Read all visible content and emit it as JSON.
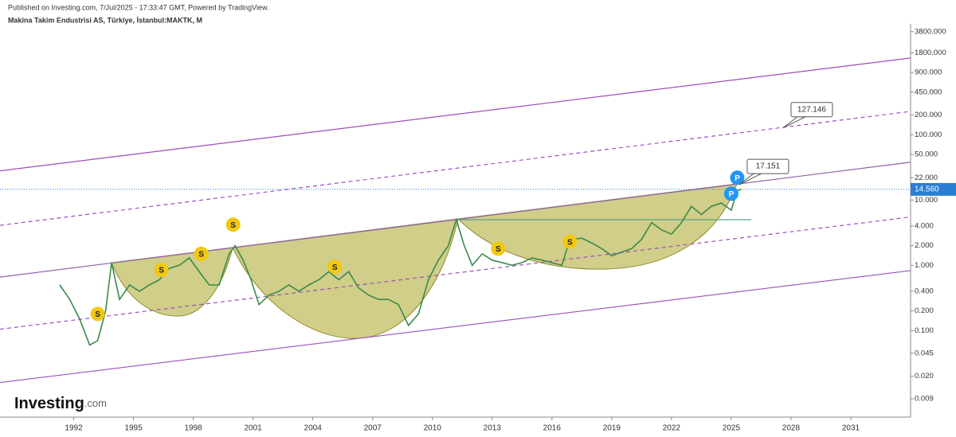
{
  "chart_data": {
    "type": "line",
    "header": "Published on Investing.com, 7/Jul/2025 - 17:33:47 GMT, Powered by TradingView.",
    "title": "Makina Takim Endustrisi AS, Türkiye, İstanbul:MAKTK, M",
    "brand": "Investing",
    "brand_suffix": ".com",
    "log_scale": true,
    "xlim": [
      1988.3,
      2034.0
    ],
    "xticks": [
      1992,
      1995,
      1998,
      2001,
      2004,
      2007,
      2010,
      2013,
      2016,
      2019,
      2022,
      2025,
      2028,
      2031
    ],
    "ylim": [
      0.005,
      5000
    ],
    "yticks": [
      {
        "value": 3800,
        "label": "3800.000"
      },
      {
        "value": 1800,
        "label": "1800.000"
      },
      {
        "value": 900,
        "label": "900.000"
      },
      {
        "value": 450,
        "label": "450.000"
      },
      {
        "value": 200,
        "label": "200.000"
      },
      {
        "value": 100,
        "label": "100.000"
      },
      {
        "value": 50,
        "label": "50.000"
      },
      {
        "value": 22,
        "label": "22.000"
      },
      {
        "value": 10,
        "label": "10.000"
      },
      {
        "value": 4,
        "label": "4.000"
      },
      {
        "value": 2,
        "label": "2.000"
      },
      {
        "value": 1,
        "label": "1.000"
      },
      {
        "value": 0.4,
        "label": "0.400"
      },
      {
        "value": 0.2,
        "label": "0.200"
      },
      {
        "value": 0.1,
        "label": "0.100"
      },
      {
        "value": 0.045,
        "label": "0.045"
      },
      {
        "value": 0.02,
        "label": "0.020"
      },
      {
        "value": 0.009,
        "label": "0.009"
      }
    ],
    "series": [
      {
        "color": "#3a8a4a",
        "x": [
          1991.3,
          1991.8,
          1992.3,
          1992.8,
          1993.2,
          1993.6,
          1993.9,
          1994.3,
          1994.8,
          1995.3,
          1995.8,
          1996.3,
          1996.8,
          1997.3,
          1997.8,
          1998.3,
          1998.8,
          1999.3,
          1999.8,
          2000.1,
          2000.5,
          2000.9,
          2001.3,
          2001.8,
          2002.3,
          2002.8,
          2003.3,
          2003.8,
          2004.3,
          2004.8,
          2005.3,
          2005.8,
          2006.3,
          2006.8,
          2007.3,
          2007.8,
          2008.3,
          2008.8,
          2009.3,
          2009.8,
          2010.3,
          2010.8,
          2011.2,
          2011.6,
          2012.0,
          2012.5,
          2013.0,
          2013.5,
          2014.0,
          2014.5,
          2015.0,
          2015.5,
          2016.0,
          2016.5,
          2016.9,
          2017.5,
          2018.0,
          2018.5,
          2019.0,
          2019.5,
          2020.0,
          2020.5,
          2021.0,
          2021.5,
          2022.0,
          2022.5,
          2023.0,
          2023.5,
          2024.0,
          2024.5,
          2025.0,
          2025.3,
          2025.5
        ],
        "values": [
          0.5,
          0.3,
          0.15,
          0.06,
          0.07,
          0.2,
          1.1,
          0.3,
          0.5,
          0.4,
          0.5,
          0.6,
          0.9,
          1.0,
          1.3,
          0.8,
          0.5,
          0.5,
          1.5,
          2.0,
          1.2,
          0.6,
          0.25,
          0.35,
          0.4,
          0.5,
          0.4,
          0.5,
          0.6,
          0.8,
          0.6,
          0.8,
          0.45,
          0.35,
          0.3,
          0.3,
          0.25,
          0.12,
          0.18,
          0.6,
          1.2,
          2.0,
          5.0,
          2.0,
          1.0,
          1.5,
          1.2,
          1.1,
          1.0,
          1.1,
          1.3,
          1.2,
          1.1,
          1.0,
          2.5,
          2.6,
          2.2,
          1.8,
          1.4,
          1.6,
          1.8,
          2.5,
          4.5,
          3.5,
          3.0,
          4.5,
          8.0,
          6.0,
          8.0,
          9.0,
          7.0,
          14.0,
          14.56
        ]
      }
    ],
    "trendlines": [
      {
        "color": "#9c4fbf",
        "dash": false,
        "x": [
          1988.3,
          2034.0
        ],
        "values": [
          28,
          1500
        ]
      },
      {
        "color": "#9c4fbf",
        "dash": false,
        "x": [
          1988.3,
          2034.0
        ],
        "values": [
          0.016,
          0.83
        ]
      },
      {
        "color": "#8f5fa8",
        "dash": false,
        "x": [
          1988.3,
          2034.0
        ],
        "values": [
          0.66,
          38
        ]
      },
      {
        "color": "#9c4fbf",
        "dash": true,
        "x": [
          1988.3,
          2034.0
        ],
        "values": [
          4.1,
          228
        ]
      },
      {
        "color": "#9c4fbf",
        "dash": true,
        "x": [
          1988.3,
          2034.0
        ],
        "values": [
          0.105,
          5.5
        ]
      },
      {
        "color": "#5aa58a",
        "dash": false,
        "x": [
          2011.2,
          2026.0
        ],
        "values": [
          5.0,
          5.0
        ]
      }
    ],
    "price_line": {
      "value": 14.56,
      "label": "14.560",
      "color": "#2a7fd4"
    },
    "markers": [
      {
        "label": "S",
        "x": 1993.2,
        "value": 0.18,
        "color": "#f2c811"
      },
      {
        "label": "S",
        "x": 1996.4,
        "value": 0.85,
        "color": "#f2c811"
      },
      {
        "label": "S",
        "x": 1998.4,
        "value": 1.5,
        "color": "#f2c811"
      },
      {
        "label": "S",
        "x": 2000.0,
        "value": 4.2,
        "color": "#f2c811"
      },
      {
        "label": "S",
        "x": 2005.1,
        "value": 0.95,
        "color": "#f2c811"
      },
      {
        "label": "S",
        "x": 2013.3,
        "value": 1.8,
        "color": "#f2c811"
      },
      {
        "label": "S",
        "x": 2016.9,
        "value": 2.3,
        "color": "#f2c811"
      },
      {
        "label": "P",
        "x": 2025.0,
        "value": 12.5,
        "color": "#2196f3"
      },
      {
        "label": "P",
        "x": 2025.3,
        "value": 22,
        "color": "#2196f3"
      }
    ],
    "annotations": [
      {
        "x": 2027.6,
        "value": 127.146
      },
      {
        "x": 2025.4,
        "value": 17.151
      }
    ]
  }
}
